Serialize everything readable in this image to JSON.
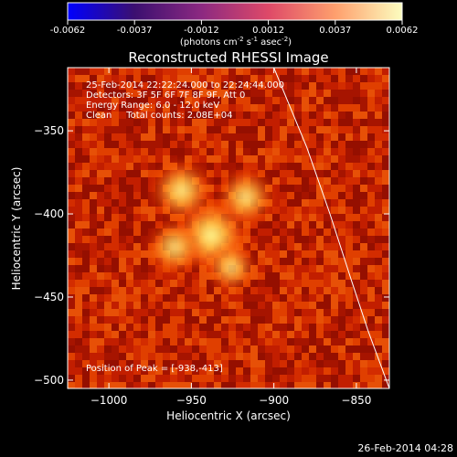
{
  "colors": {
    "background": "#000000",
    "foreground": "#ffffff",
    "colormap": [
      "#0000ff",
      "#3b0f70",
      "#8c2981",
      "#de4968",
      "#fe9f6d",
      "#fcfdbf"
    ]
  },
  "colorbar": {
    "ticks": [
      "-0.0062",
      "-0.0037",
      "-0.0012",
      "0.0012",
      "0.0037",
      "0.0062"
    ],
    "unit_parts": [
      "(photons cm",
      "-2",
      " s",
      "-1",
      " asec",
      "-2",
      ")"
    ]
  },
  "footer": {
    "timestamp": "26-Feb-2014 04:28"
  },
  "chart_data": {
    "type": "heatmap",
    "title": "Reconstructed RHESSI Image",
    "xlabel": "Heliocentric X (arcsec)",
    "ylabel": "Heliocentric Y (arcsec)",
    "xlim": [
      -1025,
      -830
    ],
    "ylim": [
      -505,
      -312
    ],
    "xticks": [
      -1000,
      -950,
      -900,
      -850
    ],
    "yticks": [
      -350,
      -400,
      -450,
      -500
    ],
    "xtick_labels": [
      "−1000",
      "−950",
      "−900",
      "−850"
    ],
    "ytick_labels": [
      "−350",
      "−400",
      "−450",
      "−500"
    ],
    "annotations": [
      "25-Feb-2014 22:22:24.000 to 22:24:44.000",
      "Detectors: 3F 5F 6F 7F 8F 9F, Att 0",
      "Energy Range: 6.0 - 12.0 keV",
      "Clean     Total counts: 2.08E+04"
    ],
    "peak_label": "Position of Peak = [-938,-413]",
    "peak": [
      -938,
      -413
    ],
    "source_lobes": [
      {
        "x": -938,
        "y": -413,
        "intensity": 1.0
      },
      {
        "x": -956,
        "y": -386,
        "intensity": 0.75
      },
      {
        "x": -917,
        "y": -390,
        "intensity": 0.65
      },
      {
        "x": -960,
        "y": -420,
        "intensity": 0.6
      },
      {
        "x": -926,
        "y": -432,
        "intensity": 0.5
      }
    ],
    "limb_curve": [
      [
        -900,
        -312
      ],
      [
        -880,
        -360
      ],
      [
        -866,
        -400
      ],
      [
        -853,
        -440
      ],
      [
        -843,
        -470
      ],
      [
        -830,
        -505
      ]
    ]
  }
}
